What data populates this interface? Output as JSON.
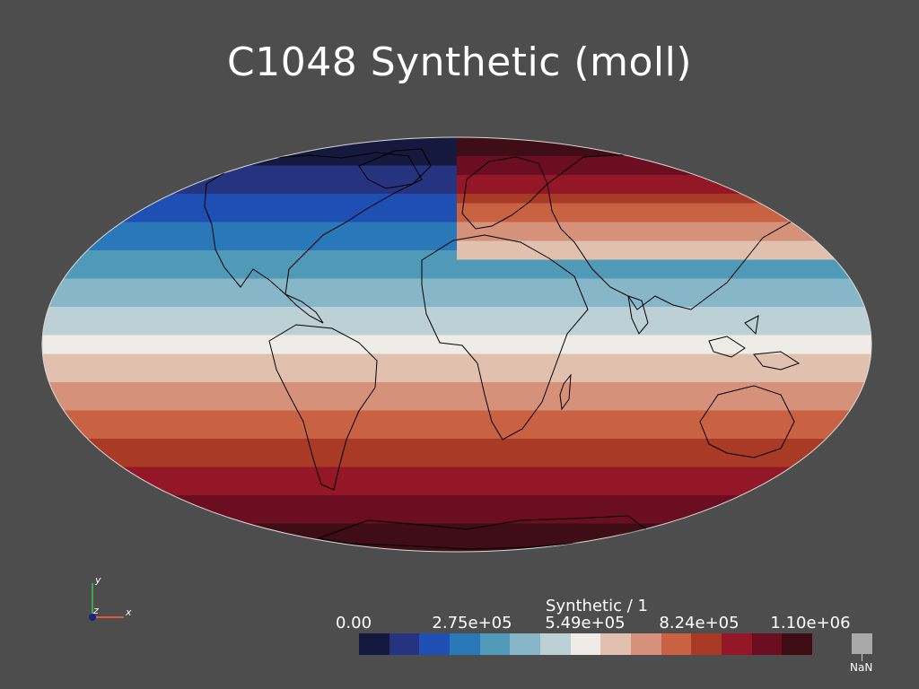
{
  "title": "C1048 Synthetic (moll)",
  "map": {
    "projection": "mollweide",
    "variable": "Synthetic",
    "coastline_color": "#000000",
    "background": "#4d4d4d"
  },
  "colorbar": {
    "title": "Synthetic / 1",
    "ticks": [
      "0.00",
      "2.75e+05",
      "5.49e+05",
      "8.24e+05",
      "1.10e+06"
    ],
    "range": [
      0,
      1100000
    ],
    "colors": [
      "#14193d",
      "#26337f",
      "#1f4fb2",
      "#2a78b8",
      "#509ab8",
      "#86b6c7",
      "#bcd0d6",
      "#efebe7",
      "#e2c0b0",
      "#d6917a",
      "#c96143",
      "#a83a26",
      "#941727",
      "#6b0e21",
      "#3f0d15"
    ],
    "nan_label": "NaN",
    "nan_color": "#a9a9a9"
  },
  "axes": {
    "x_label": "x",
    "y_label": "y",
    "z_label": "z"
  }
}
